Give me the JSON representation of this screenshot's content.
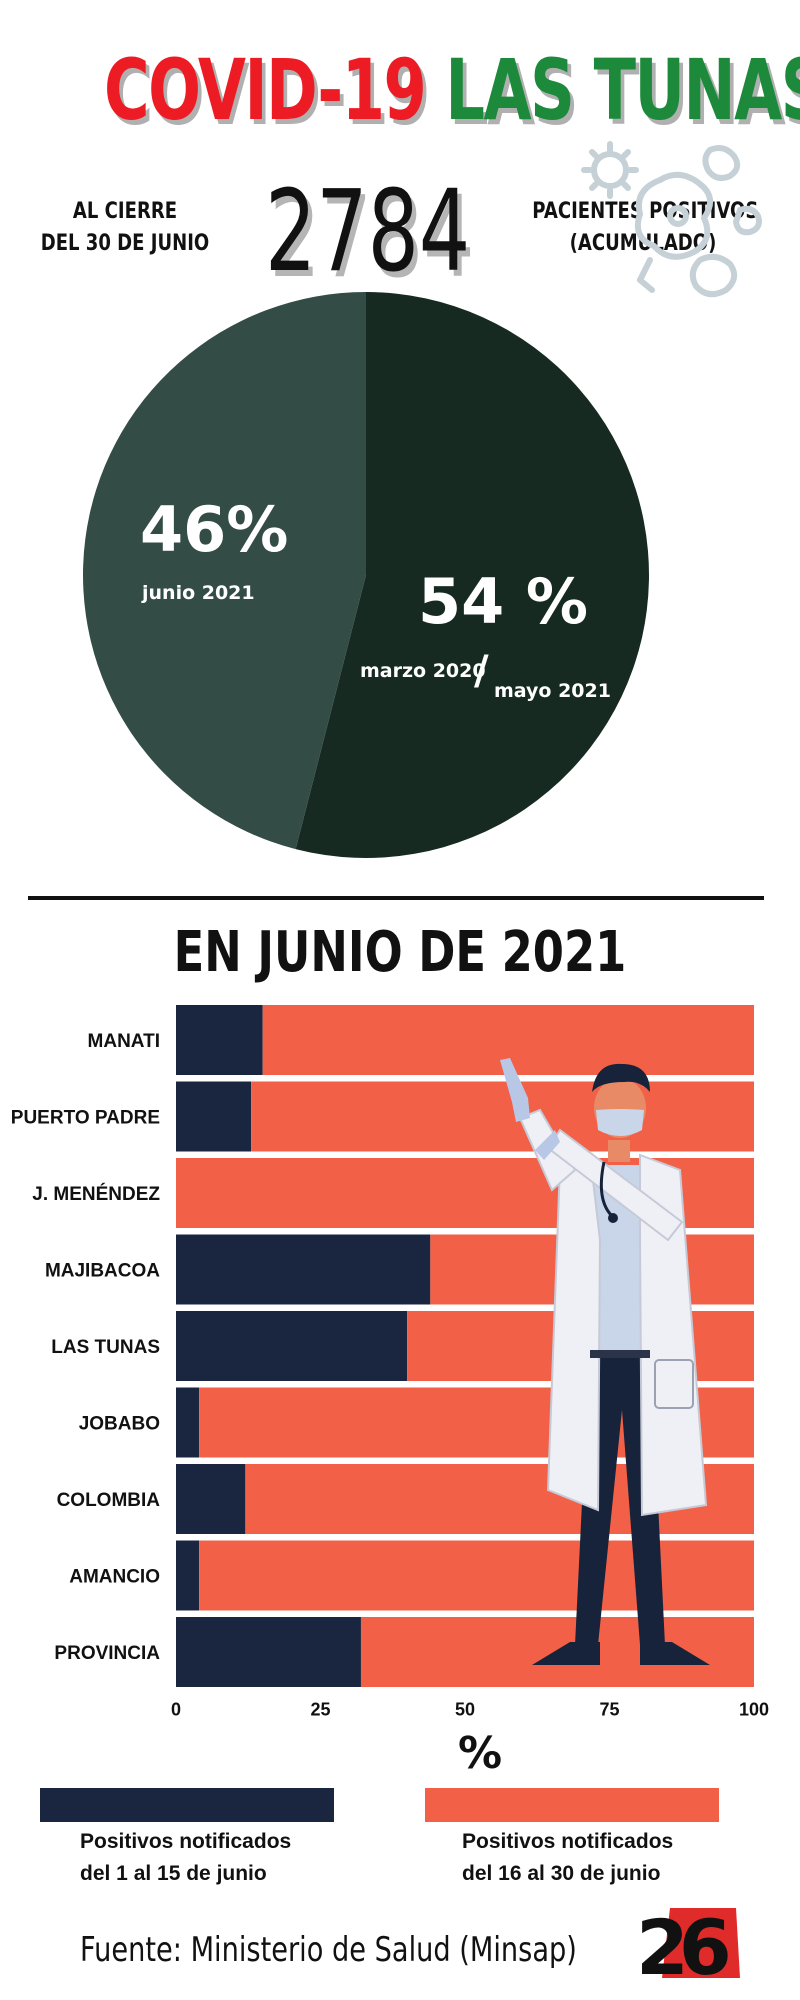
{
  "header": {
    "title_part1": "COVID-19",
    "title_part2": "LAS TUNAS",
    "left_text_line1": "AL CIERRE",
    "left_text_line2": "DEL 30 DE JUNIO",
    "big_number": "2784",
    "right_text_line1": "PACIENTES POSITIVOS",
    "right_text_line2": "(ACUMULADO)",
    "icon": "virus-icon"
  },
  "pie": {
    "slices": [
      {
        "percent_label": "54 %",
        "value": 54,
        "label_part1": "marzo 2020",
        "separator": "/",
        "label_part2": "mayo 2021",
        "color": "#162a22"
      },
      {
        "percent_label": "46%",
        "value": 46,
        "label": "junio 2021",
        "color": "#344c46"
      }
    ]
  },
  "section_title": "EN JUNIO DE 2021",
  "chart_data": {
    "type": "bar",
    "orientation": "horizontal",
    "stacked": true,
    "categories": [
      "MANATI",
      "PUERTO PADRE",
      "J. MENÉNDEZ",
      "MAJIBACOA",
      "LAS TUNAS",
      "JOBABO",
      "COLOMBIA",
      "AMANCIO",
      "PROVINCIA"
    ],
    "series": [
      {
        "name": "Positivos notificados del 1 al 15 de junio",
        "values": [
          15,
          13,
          0,
          44,
          40,
          4,
          12,
          4,
          32
        ],
        "color": "#1a2640"
      },
      {
        "name": "Positivos notificados del 16 al 30 de junio",
        "values": [
          85,
          87,
          100,
          56,
          60,
          96,
          88,
          96,
          68
        ],
        "color": "#f26147"
      }
    ],
    "xlim": [
      0,
      100
    ],
    "xticks": [
      "0",
      "25",
      "50",
      "75",
      "100"
    ],
    "xlabel": "%"
  },
  "legend": {
    "item1_line1": "Positivos notificados",
    "item1_line2": "del 1 al 15 de junio",
    "item2_line1": "Positivos notificados",
    "item2_line2": "del 16 al 30 de junio",
    "color1": "#1a2640",
    "color2": "#f26147"
  },
  "source": "Fuente: Ministerio de Salud (Minsap)",
  "logo": "26"
}
